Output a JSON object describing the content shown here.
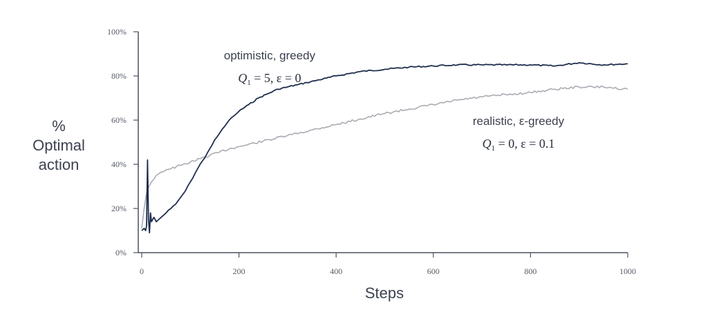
{
  "chart_data": {
    "type": "line",
    "xlabel": "Steps",
    "ylabel_lines": [
      "%",
      "Optimal",
      "action"
    ],
    "xlim": [
      0,
      1000
    ],
    "ylim": [
      0,
      100
    ],
    "x_ticks": [
      0,
      200,
      400,
      600,
      800,
      1000
    ],
    "x_tick_labels": [
      "0",
      "200",
      "400",
      "600",
      "800",
      "1000"
    ],
    "y_ticks": [
      0,
      20,
      40,
      60,
      80,
      100
    ],
    "y_tick_labels": [
      "0%",
      "20%",
      "40%",
      "60%",
      "80%",
      "100%"
    ],
    "grid": false,
    "series": [
      {
        "key": "optimistic",
        "color": "#1f2d4d",
        "x": [
          0,
          5,
          8,
          10,
          12,
          14,
          16,
          18,
          20,
          25,
          30,
          40,
          50,
          60,
          70,
          80,
          90,
          100,
          110,
          120,
          130,
          140,
          150,
          160,
          170,
          180,
          190,
          200,
          220,
          240,
          260,
          280,
          300,
          320,
          340,
          360,
          380,
          400,
          450,
          500,
          550,
          600,
          650,
          700,
          750,
          800,
          850,
          900,
          950,
          1000
        ],
        "y": [
          10,
          11,
          10,
          12,
          42,
          15,
          9,
          18,
          14,
          16,
          14,
          16,
          18,
          20,
          22,
          25,
          28,
          32,
          36,
          40,
          43,
          47,
          51,
          54,
          57,
          60,
          62,
          64,
          67,
          70,
          72,
          74,
          75,
          76,
          77,
          78,
          79,
          80,
          82,
          83,
          84,
          84.5,
          85,
          85,
          85,
          85,
          84.5,
          86,
          85,
          85.5
        ]
      },
      {
        "key": "realistic",
        "color": "#a9acb2",
        "x": [
          0,
          5,
          10,
          15,
          20,
          30,
          40,
          50,
          60,
          80,
          100,
          120,
          140,
          160,
          180,
          200,
          250,
          300,
          350,
          400,
          450,
          500,
          550,
          600,
          650,
          700,
          750,
          800,
          850,
          900,
          950,
          1000
        ],
        "y": [
          11,
          20,
          27,
          30,
          32,
          35,
          36.5,
          37.5,
          38,
          39.5,
          41,
          42.5,
          44,
          45.5,
          47,
          48,
          50.5,
          53,
          55.5,
          58,
          60.5,
          63,
          65,
          67,
          69,
          70.5,
          71.5,
          72.5,
          74,
          75,
          75,
          74
        ]
      }
    ],
    "annotations": {
      "optimistic_label": "optimistic, greedy",
      "optimistic_q": "Q",
      "optimistic_q_sub": "1",
      "optimistic_q_rest": " = 5,  ε = 0",
      "realistic_label": "realistic, ε-greedy",
      "realistic_q": "Q",
      "realistic_q_sub": "1",
      "realistic_q_rest": " = 0,  ε = 0.1"
    }
  }
}
